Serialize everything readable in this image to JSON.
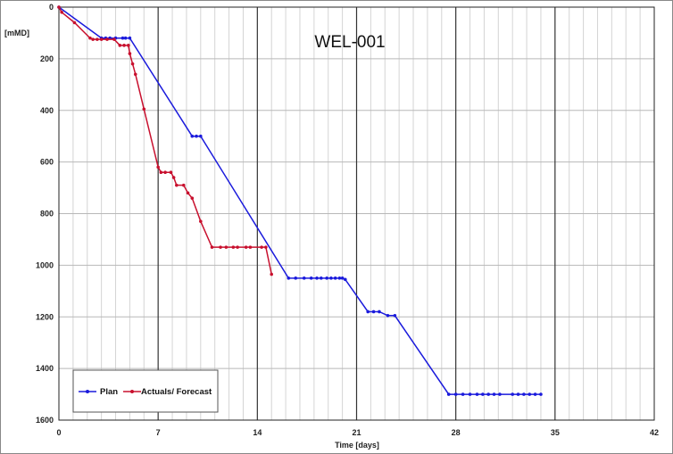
{
  "chart_data": {
    "type": "line",
    "title": "WEL-001",
    "xlabel": "Time [days]",
    "ylabel": "[mMD]",
    "xlim": [
      0,
      42
    ],
    "ylim": [
      1600,
      0
    ],
    "y_inverted": true,
    "xticks": [
      0,
      7,
      14,
      21,
      28,
      35,
      42
    ],
    "yticks": [
      0,
      200,
      400,
      600,
      800,
      1000,
      1200,
      1400,
      1600
    ],
    "grid": true,
    "legend_position": "bottom-left",
    "series": [
      {
        "name": "Plan",
        "color": "#1a1adc",
        "points": [
          [
            0,
            0
          ],
          [
            3,
            120
          ],
          [
            3.3,
            120
          ],
          [
            3.6,
            120
          ],
          [
            4,
            120
          ],
          [
            4.5,
            120
          ],
          [
            4.7,
            120
          ],
          [
            5,
            120
          ],
          [
            9.4,
            500
          ],
          [
            9.7,
            500
          ],
          [
            10,
            500
          ],
          [
            16.2,
            1050
          ],
          [
            16.7,
            1050
          ],
          [
            17.3,
            1050
          ],
          [
            17.8,
            1050
          ],
          [
            18.2,
            1050
          ],
          [
            18.5,
            1050
          ],
          [
            18.9,
            1050
          ],
          [
            19.2,
            1050
          ],
          [
            19.5,
            1050
          ],
          [
            19.8,
            1050
          ],
          [
            20.0,
            1050
          ],
          [
            20.2,
            1055
          ],
          [
            21.8,
            1180
          ],
          [
            22.2,
            1180
          ],
          [
            22.6,
            1180
          ],
          [
            23.2,
            1195
          ],
          [
            23.7,
            1195
          ],
          [
            27.5,
            1500
          ],
          [
            28,
            1500
          ],
          [
            28.5,
            1500
          ],
          [
            29,
            1500
          ],
          [
            29.5,
            1500
          ],
          [
            29.9,
            1500
          ],
          [
            30.3,
            1500
          ],
          [
            30.7,
            1500
          ],
          [
            31.1,
            1500
          ],
          [
            32,
            1500
          ],
          [
            32.4,
            1500
          ],
          [
            32.8,
            1500
          ],
          [
            33.2,
            1500
          ],
          [
            33.6,
            1500
          ],
          [
            34,
            1500
          ]
        ]
      },
      {
        "name": "Actuals/ Forecast",
        "color": "#c8102e",
        "points": [
          [
            0,
            0
          ],
          [
            0.2,
            20
          ],
          [
            1.1,
            60
          ],
          [
            2.2,
            120
          ],
          [
            2.4,
            125
          ],
          [
            2.7,
            125
          ],
          [
            3,
            125
          ],
          [
            3.4,
            125
          ],
          [
            3.9,
            125
          ],
          [
            4.3,
            148
          ],
          [
            4.6,
            148
          ],
          [
            4.9,
            148
          ],
          [
            5.0,
            180
          ],
          [
            5.2,
            220
          ],
          [
            5.4,
            260
          ],
          [
            6.0,
            395
          ],
          [
            7,
            620
          ],
          [
            7.2,
            640
          ],
          [
            7.5,
            640
          ],
          [
            7.9,
            640
          ],
          [
            8.1,
            660
          ],
          [
            8.3,
            690
          ],
          [
            8.8,
            690
          ],
          [
            9.1,
            720
          ],
          [
            9.4,
            740
          ],
          [
            10,
            830
          ],
          [
            10.8,
            930
          ],
          [
            11.4,
            930
          ],
          [
            11.8,
            930
          ],
          [
            12.3,
            930
          ],
          [
            12.6,
            930
          ],
          [
            13.2,
            930
          ],
          [
            13.5,
            930
          ],
          [
            14.3,
            930
          ],
          [
            14.6,
            930
          ],
          [
            15,
            1035
          ]
        ]
      }
    ]
  }
}
